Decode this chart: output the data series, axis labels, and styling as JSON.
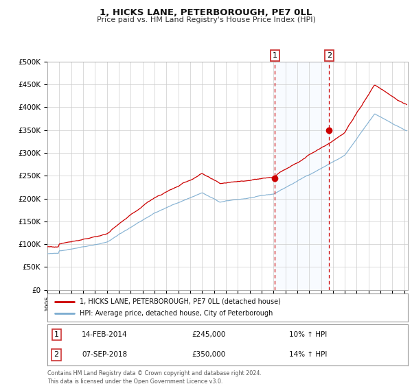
{
  "title": "1, HICKS LANE, PETERBOROUGH, PE7 0LL",
  "subtitle": "Price paid vs. HM Land Registry's House Price Index (HPI)",
  "legend_line1": "1, HICKS LANE, PETERBOROUGH, PE7 0LL (detached house)",
  "legend_line2": "HPI: Average price, detached house, City of Peterborough",
  "footer_line1": "Contains HM Land Registry data © Crown copyright and database right 2024.",
  "footer_line2": "This data is licensed under the Open Government Licence v3.0.",
  "annotation1_label": "1",
  "annotation1_date": "14-FEB-2014",
  "annotation1_price": "£245,000",
  "annotation1_hpi": "10% ↑ HPI",
  "annotation1_year": 2014.12,
  "annotation1_value": 245000,
  "annotation2_label": "2",
  "annotation2_date": "07-SEP-2018",
  "annotation2_price": "£350,000",
  "annotation2_hpi": "14% ↑ HPI",
  "annotation2_year": 2018.69,
  "annotation2_value": 350000,
  "line_color_red": "#cc0000",
  "line_color_blue": "#7aabcf",
  "shading_color": "#ddeeff",
  "dashed_line_color": "#cc0000",
  "background_color": "#ffffff",
  "grid_color": "#cccccc",
  "ylim": [
    0,
    500000
  ],
  "yticks": [
    0,
    50000,
    100000,
    150000,
    200000,
    250000,
    300000,
    350000,
    400000,
    450000,
    500000
  ],
  "xlim_start": 1995.0,
  "xlim_end": 2025.3
}
